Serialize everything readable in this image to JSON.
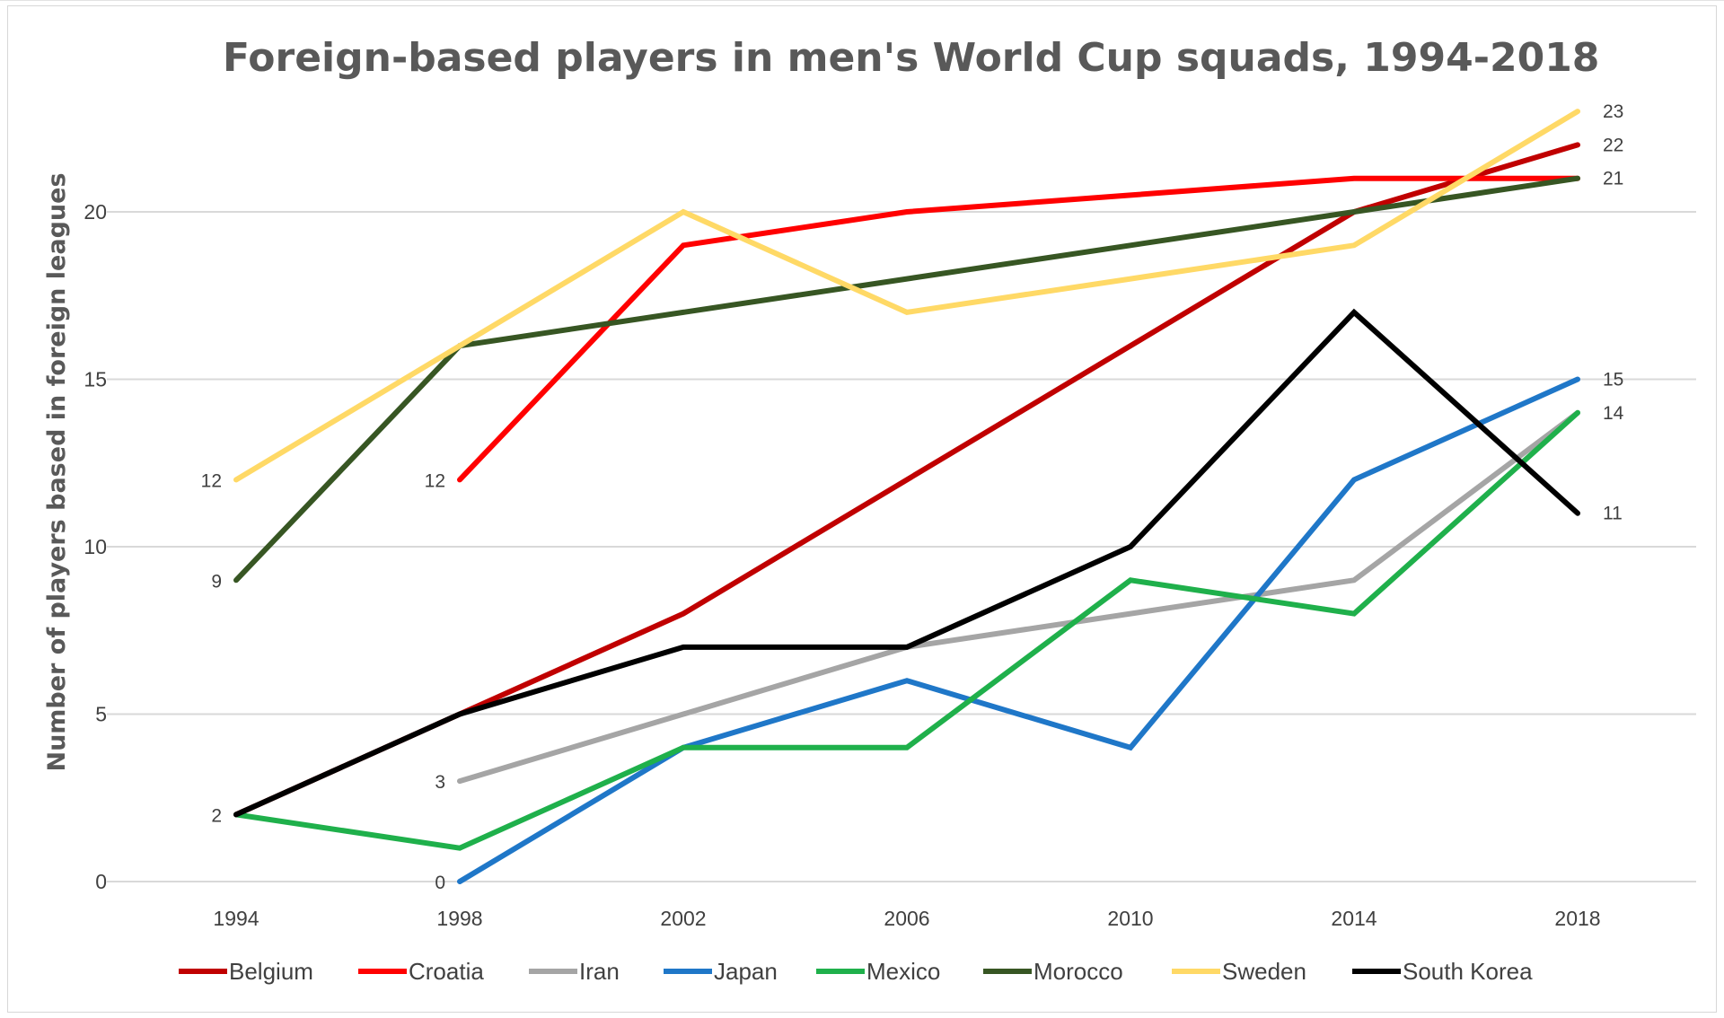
{
  "chart_data": {
    "type": "line",
    "title": "Foreign-based players in men's World Cup squads, 1994-2018",
    "xlabel": "",
    "ylabel": "Number of players based in foreign leagues",
    "categories": [
      "1994",
      "1998",
      "2002",
      "2006",
      "2010",
      "2014",
      "2018"
    ],
    "ylim": [
      0,
      23
    ],
    "yticks": [
      0,
      5,
      10,
      15,
      20
    ],
    "grid": true,
    "legend_position": "bottom",
    "series": [
      {
        "name": "Belgium",
        "color": "#c00000",
        "values": [
          2,
          5,
          8,
          12,
          16,
          20,
          22
        ]
      },
      {
        "name": "Croatia",
        "color": "#ff0000",
        "values": [
          null,
          12,
          19,
          20,
          20.5,
          21,
          21
        ]
      },
      {
        "name": "Iran",
        "color": "#a5a5a5",
        "values": [
          null,
          3,
          5,
          7,
          8,
          9,
          14
        ]
      },
      {
        "name": "Japan",
        "color": "#1f77c8",
        "values": [
          null,
          0,
          4,
          6,
          4,
          12,
          15
        ]
      },
      {
        "name": "Mexico",
        "color": "#1fb04b",
        "values": [
          2,
          1,
          4,
          4,
          9,
          8,
          14
        ]
      },
      {
        "name": "Morocco",
        "color": "#375623",
        "values": [
          9,
          16,
          17,
          18,
          19,
          20,
          21
        ]
      },
      {
        "name": "Sweden",
        "color": "#ffd966",
        "values": [
          12,
          16,
          20,
          17,
          18,
          19,
          23
        ]
      },
      {
        "name": "South Korea",
        "color": "#000000",
        "values": [
          2,
          5,
          7,
          7,
          10,
          17,
          11
        ]
      }
    ],
    "start_labels": [
      {
        "text": "12",
        "cat": 0,
        "value": 12
      },
      {
        "text": "9",
        "cat": 0,
        "value": 9
      },
      {
        "text": "2",
        "cat": 0,
        "value": 2
      },
      {
        "text": "12",
        "cat": 1,
        "value": 12
      },
      {
        "text": "3",
        "cat": 1,
        "value": 3
      },
      {
        "text": "0",
        "cat": 1,
        "value": 0
      }
    ],
    "end_labels": [
      {
        "text": "23",
        "value": 23
      },
      {
        "text": "22",
        "value": 22
      },
      {
        "text": "21",
        "value": 21
      },
      {
        "text": "15",
        "value": 15
      },
      {
        "text": "14",
        "value": 14
      },
      {
        "text": "11",
        "value": 11
      }
    ]
  }
}
